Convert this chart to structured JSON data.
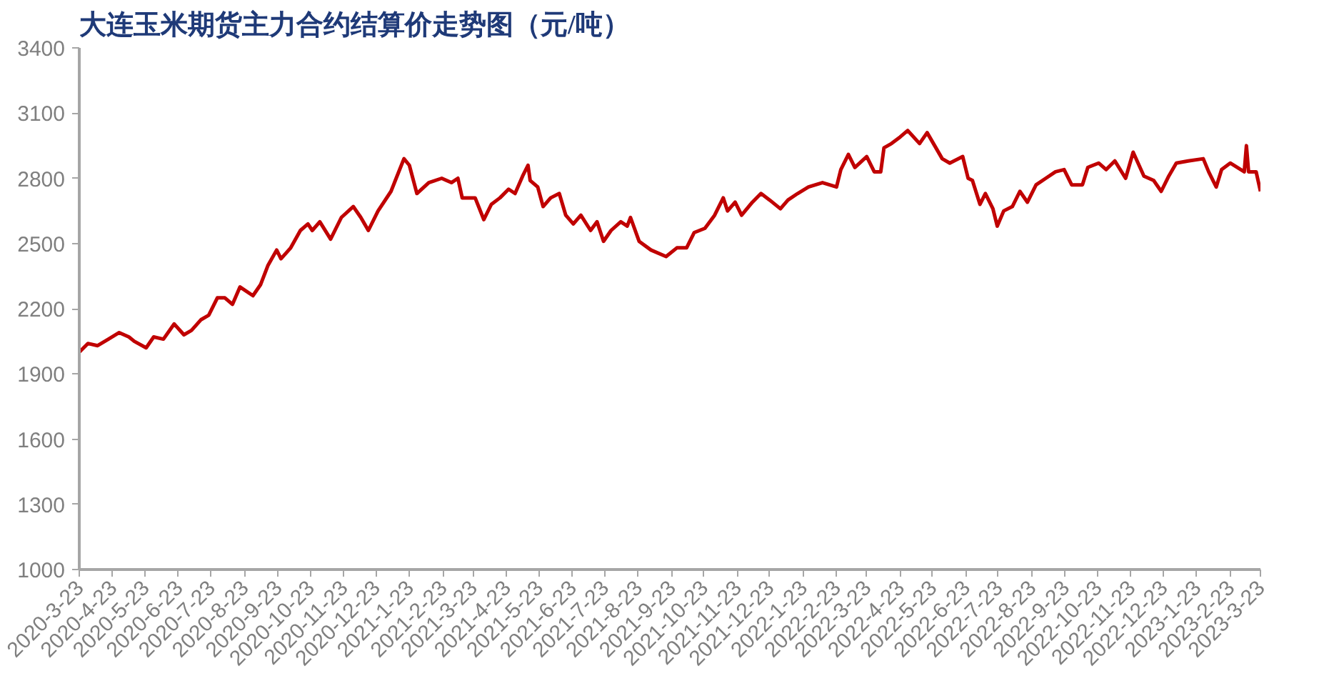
{
  "chart_data": {
    "type": "line",
    "title": "大连玉米期货主力合约结算价走势图（元/吨）",
    "xlim": [
      "2020-03-23",
      "2023-03-23"
    ],
    "xticks": [
      {
        "value": "2020-03-23",
        "label": "2020-3-23"
      },
      {
        "value": "2020-04-23",
        "label": "2020-4-23"
      },
      {
        "value": "2020-05-23",
        "label": "2020-5-23"
      },
      {
        "value": "2020-06-23",
        "label": "2020-6-23"
      },
      {
        "value": "2020-07-23",
        "label": "2020-7-23"
      },
      {
        "value": "2020-08-23",
        "label": "2020-8-23"
      },
      {
        "value": "2020-09-23",
        "label": "2020-9-23"
      },
      {
        "value": "2020-10-23",
        "label": "2020-10-23"
      },
      {
        "value": "2020-11-23",
        "label": "2020-11-23"
      },
      {
        "value": "2020-12-23",
        "label": "2020-12-23"
      },
      {
        "value": "2021-01-23",
        "label": "2021-1-23"
      },
      {
        "value": "2021-02-23",
        "label": "2021-2-23"
      },
      {
        "value": "2021-03-23",
        "label": "2021-3-23"
      },
      {
        "value": "2021-04-23",
        "label": "2021-4-23"
      },
      {
        "value": "2021-05-23",
        "label": "2021-5-23"
      },
      {
        "value": "2021-06-23",
        "label": "2021-6-23"
      },
      {
        "value": "2021-07-23",
        "label": "2021-7-23"
      },
      {
        "value": "2021-08-23",
        "label": "2021-8-23"
      },
      {
        "value": "2021-09-23",
        "label": "2021-9-23"
      },
      {
        "value": "2021-10-23",
        "label": "2021-10-23"
      },
      {
        "value": "2021-11-23",
        "label": "2021-11-23"
      },
      {
        "value": "2021-12-23",
        "label": "2021-12-23"
      },
      {
        "value": "2022-01-23",
        "label": "2022-1-23"
      },
      {
        "value": "2022-02-23",
        "label": "2022-2-23"
      },
      {
        "value": "2022-03-23",
        "label": "2022-3-23"
      },
      {
        "value": "2022-04-23",
        "label": "2022-4-23"
      },
      {
        "value": "2022-05-23",
        "label": "2022-5-23"
      },
      {
        "value": "2022-06-23",
        "label": "2022-6-23"
      },
      {
        "value": "2022-07-23",
        "label": "2022-7-23"
      },
      {
        "value": "2022-08-23",
        "label": "2022-8-23"
      },
      {
        "value": "2022-09-23",
        "label": "2022-9-23"
      },
      {
        "value": "2022-10-23",
        "label": "2022-10-23"
      },
      {
        "value": "2022-11-23",
        "label": "2022-11-23"
      },
      {
        "value": "2022-12-23",
        "label": "2022-12-23"
      },
      {
        "value": "2023-01-23",
        "label": "2023-1-23"
      },
      {
        "value": "2023-02-23",
        "label": "2023-2-23"
      },
      {
        "value": "2023-03-23",
        "label": "2023-3-23"
      }
    ],
    "ylim": [
      1000,
      3400
    ],
    "yticks": [
      1000,
      1300,
      1600,
      1900,
      2200,
      2500,
      2800,
      3100,
      3400
    ],
    "grid": false,
    "marker": "none",
    "line_style": "solid",
    "series": [
      {
        "color": "#c00000",
        "x": [
          "2020-03-23",
          "2020-03-31",
          "2020-04-09",
          "2020-04-19",
          "2020-04-29",
          "2020-05-08",
          "2020-05-13",
          "2020-05-24",
          "2020-05-31",
          "2020-06-09",
          "2020-06-19",
          "2020-06-28",
          "2020-07-05",
          "2020-07-14",
          "2020-07-21",
          "2020-07-29",
          "2020-08-05",
          "2020-08-12",
          "2020-08-19",
          "2020-08-31",
          "2020-09-07",
          "2020-09-14",
          "2020-09-22",
          "2020-09-26",
          "2020-10-05",
          "2020-10-14",
          "2020-10-21",
          "2020-10-25",
          "2020-11-01",
          "2020-11-11",
          "2020-11-21",
          "2020-12-02",
          "2020-12-09",
          "2020-12-16",
          "2020-12-25",
          "2021-01-06",
          "2021-01-10",
          "2021-01-18",
          "2021-01-23",
          "2021-01-30",
          "2021-02-10",
          "2021-02-22",
          "2021-03-03",
          "2021-03-09",
          "2021-03-13",
          "2021-03-25",
          "2021-04-02",
          "2021-04-09",
          "2021-04-17",
          "2021-04-25",
          "2021-05-01",
          "2021-05-08",
          "2021-05-13",
          "2021-05-15",
          "2021-05-22",
          "2021-05-27",
          "2021-06-03",
          "2021-06-11",
          "2021-06-17",
          "2021-06-24",
          "2021-07-01",
          "2021-07-10",
          "2021-07-16",
          "2021-07-22",
          "2021-07-29",
          "2021-08-07",
          "2021-08-13",
          "2021-08-16",
          "2021-08-24",
          "2021-09-04",
          "2021-09-18",
          "2021-09-28",
          "2021-10-07",
          "2021-10-14",
          "2021-10-24",
          "2021-11-02",
          "2021-11-10",
          "2021-11-14",
          "2021-11-21",
          "2021-11-27",
          "2021-12-07",
          "2021-12-15",
          "2021-12-23",
          "2022-01-02",
          "2022-01-09",
          "2022-01-18",
          "2022-01-28",
          "2022-02-10",
          "2022-02-23",
          "2022-02-27",
          "2022-03-06",
          "2022-03-12",
          "2022-03-23",
          "2022-03-30",
          "2022-04-05",
          "2022-04-08",
          "2022-04-15",
          "2022-04-23",
          "2022-04-30",
          "2022-05-11",
          "2022-05-18",
          "2022-05-25",
          "2022-06-01",
          "2022-06-08",
          "2022-06-20",
          "2022-06-25",
          "2022-06-29",
          "2022-07-06",
          "2022-07-11",
          "2022-07-18",
          "2022-07-22",
          "2022-07-28",
          "2022-08-05",
          "2022-08-12",
          "2022-08-19",
          "2022-08-27",
          "2022-09-05",
          "2022-09-14",
          "2022-09-22",
          "2022-09-29",
          "2022-10-09",
          "2022-10-14",
          "2022-10-24",
          "2022-10-31",
          "2022-11-08",
          "2022-11-18",
          "2022-11-25",
          "2022-12-05",
          "2022-12-14",
          "2022-12-21",
          "2022-12-28",
          "2023-01-04",
          "2023-01-15",
          "2023-01-29",
          "2023-02-03",
          "2023-02-10",
          "2023-02-15",
          "2023-02-23",
          "2023-03-08",
          "2023-03-10",
          "2023-03-12",
          "2023-03-19",
          "2023-03-23"
        ],
        "values": [
          2000,
          2040,
          2030,
          2060,
          2090,
          2070,
          2050,
          2020,
          2070,
          2060,
          2130,
          2080,
          2100,
          2150,
          2170,
          2250,
          2250,
          2220,
          2300,
          2260,
          2310,
          2400,
          2470,
          2430,
          2480,
          2560,
          2590,
          2560,
          2600,
          2520,
          2620,
          2670,
          2620,
          2560,
          2650,
          2740,
          2790,
          2890,
          2860,
          2730,
          2780,
          2800,
          2780,
          2800,
          2710,
          2710,
          2610,
          2680,
          2710,
          2750,
          2730,
          2810,
          2860,
          2790,
          2760,
          2670,
          2710,
          2730,
          2630,
          2590,
          2630,
          2560,
          2600,
          2510,
          2560,
          2600,
          2580,
          2620,
          2510,
          2470,
          2440,
          2480,
          2480,
          2550,
          2570,
          2630,
          2710,
          2650,
          2690,
          2630,
          2690,
          2730,
          2700,
          2660,
          2700,
          2730,
          2760,
          2780,
          2760,
          2840,
          2910,
          2850,
          2900,
          2830,
          2830,
          2940,
          2960,
          2990,
          3020,
          2960,
          3010,
          2950,
          2890,
          2870,
          2900,
          2800,
          2790,
          2680,
          2730,
          2660,
          2580,
          2650,
          2670,
          2740,
          2690,
          2770,
          2800,
          2830,
          2840,
          2770,
          2770,
          2850,
          2870,
          2840,
          2880,
          2800,
          2920,
          2810,
          2790,
          2740,
          2810,
          2870,
          2880,
          2890,
          2830,
          2760,
          2840,
          2870,
          2830,
          2950,
          2830,
          2830,
          2740
        ]
      }
    ]
  }
}
